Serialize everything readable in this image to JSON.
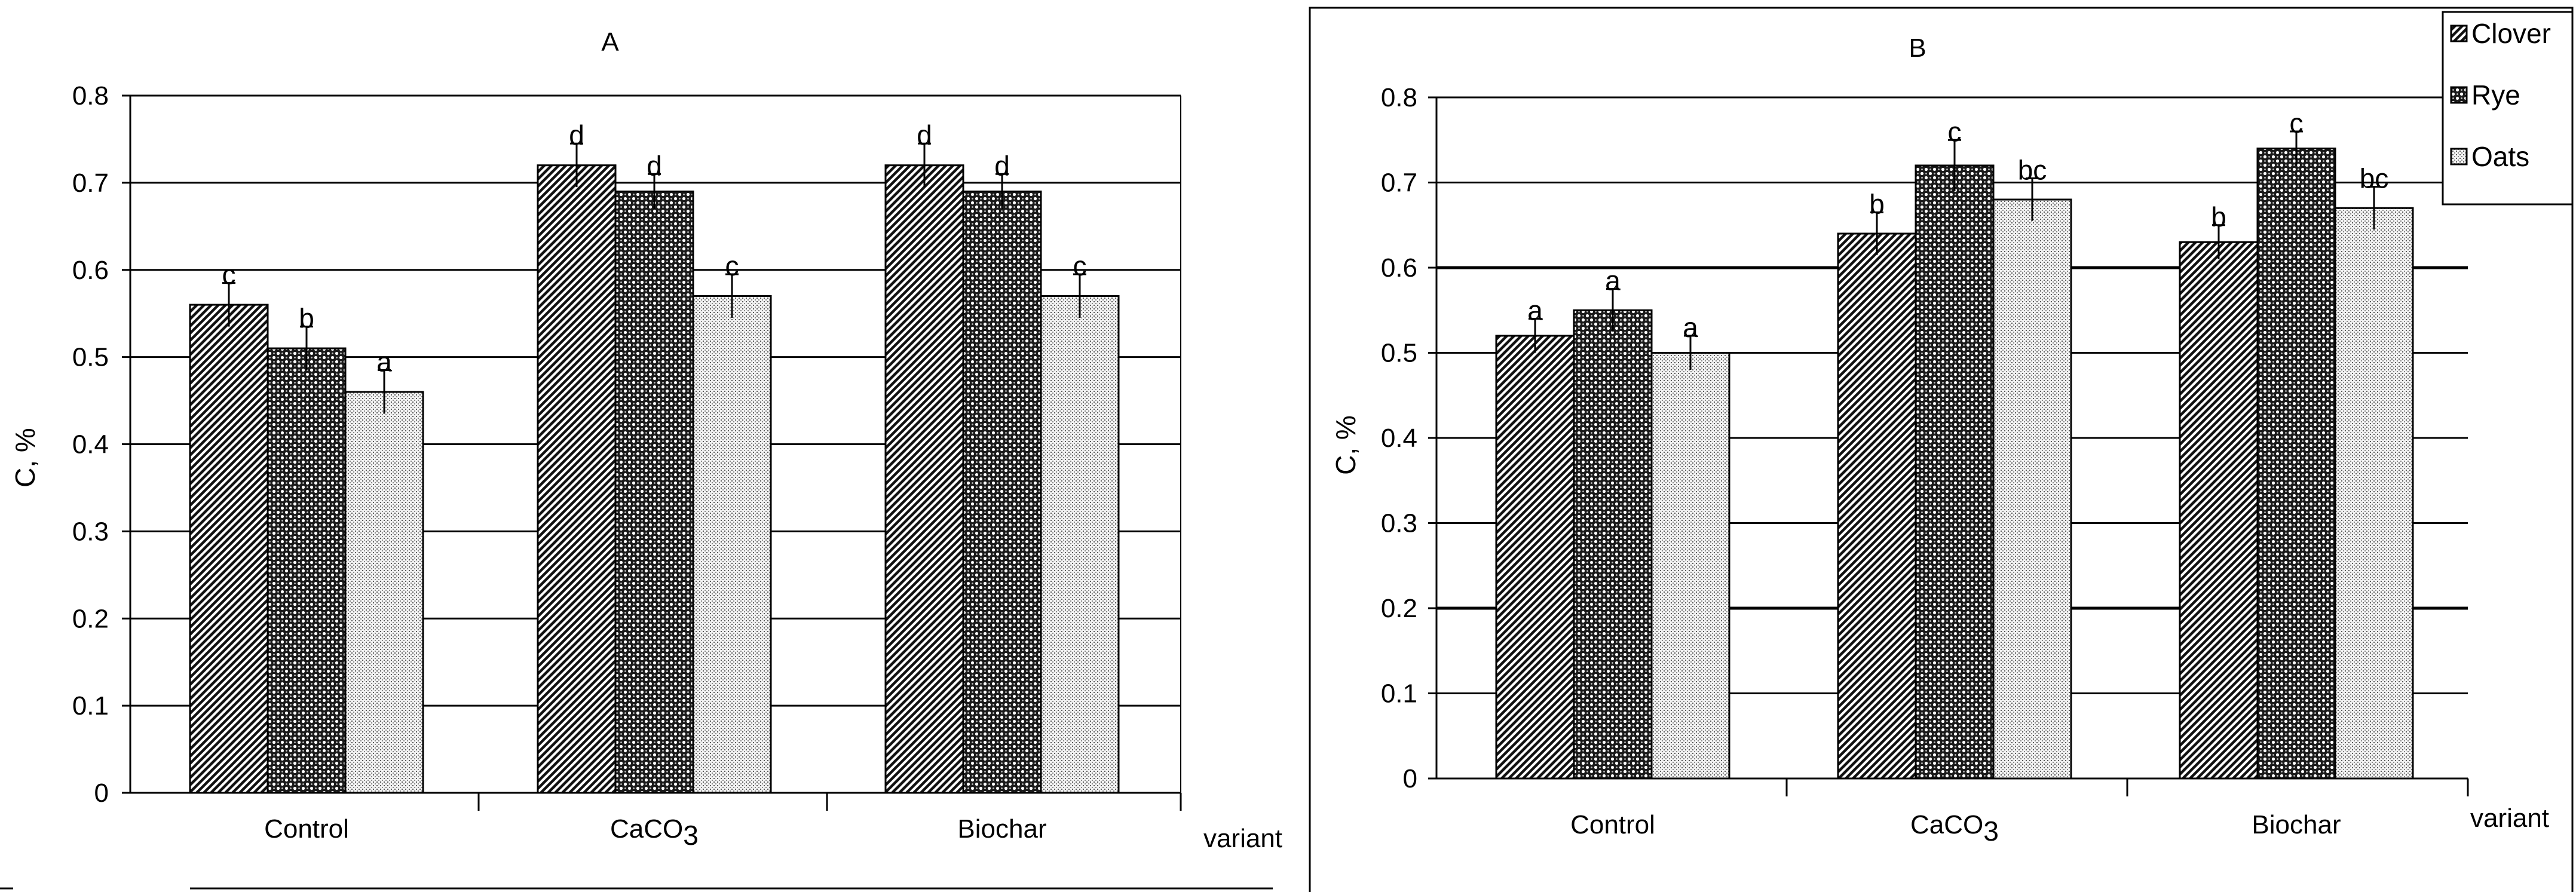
{
  "chart_data": [
    {
      "type": "bar",
      "title": "A",
      "xlabel": "variant",
      "ylabel": "C, %",
      "categories": [
        "Control",
        "CaCO3",
        "Biochar"
      ],
      "category_display": [
        {
          "text": "Control",
          "sub": ""
        },
        {
          "text": "CaCO",
          "sub": "3"
        },
        {
          "text": "Biochar",
          "sub": ""
        }
      ],
      "ylim": [
        0,
        0.8
      ],
      "yticks": [
        "0",
        "0.1",
        "0.2",
        "0.3",
        "0.4",
        "0.5",
        "0.6",
        "0.7",
        "0.8"
      ],
      "grid": true,
      "legend": null,
      "series": [
        {
          "name": "Clover",
          "pattern": "hatch-diag",
          "values": [
            0.56,
            0.72,
            0.72
          ],
          "errors": [
            0.025,
            0.025,
            0.025
          ],
          "labels": [
            "c",
            "d",
            "d"
          ]
        },
        {
          "name": "Rye",
          "pattern": "hatch-check",
          "values": [
            0.51,
            0.69,
            0.69
          ],
          "errors": [
            0.025,
            0.02,
            0.02
          ],
          "labels": [
            "b",
            "d",
            "d"
          ]
        },
        {
          "name": "Oats",
          "pattern": "hatch-dots",
          "values": [
            0.46,
            0.57,
            0.57
          ],
          "errors": [
            0.025,
            0.025,
            0.025
          ],
          "labels": [
            "a",
            "c",
            "c"
          ]
        }
      ]
    },
    {
      "type": "bar",
      "title": "B",
      "xlabel": "variant",
      "ylabel": "C, %",
      "categories": [
        "Control",
        "CaCO3",
        "Biochar"
      ],
      "category_display": [
        {
          "text": "Control",
          "sub": ""
        },
        {
          "text": "CaCO",
          "sub": "3"
        },
        {
          "text": "Biochar",
          "sub": ""
        }
      ],
      "ylim": [
        0,
        0.8
      ],
      "yticks": [
        "0",
        "0.1",
        "0.2",
        "0.3",
        "0.4",
        "0.5",
        "0.6",
        "0.7",
        "0.8"
      ],
      "grid": true,
      "legend": "top-right",
      "series": [
        {
          "name": "Clover",
          "pattern": "hatch-diag",
          "values": [
            0.52,
            0.64,
            0.63
          ],
          "errors": [
            0.02,
            0.025,
            0.02
          ],
          "labels": [
            "a",
            "b",
            "b"
          ]
        },
        {
          "name": "Rye",
          "pattern": "hatch-check",
          "values": [
            0.55,
            0.72,
            0.74
          ],
          "errors": [
            0.025,
            0.03,
            0.02
          ],
          "labels": [
            "a",
            "c",
            "c"
          ]
        },
        {
          "name": "Oats",
          "pattern": "hatch-dots",
          "values": [
            0.5,
            0.68,
            0.67
          ],
          "errors": [
            0.02,
            0.025,
            0.025
          ],
          "labels": [
            "a",
            "bc",
            "bc"
          ]
        }
      ]
    }
  ]
}
